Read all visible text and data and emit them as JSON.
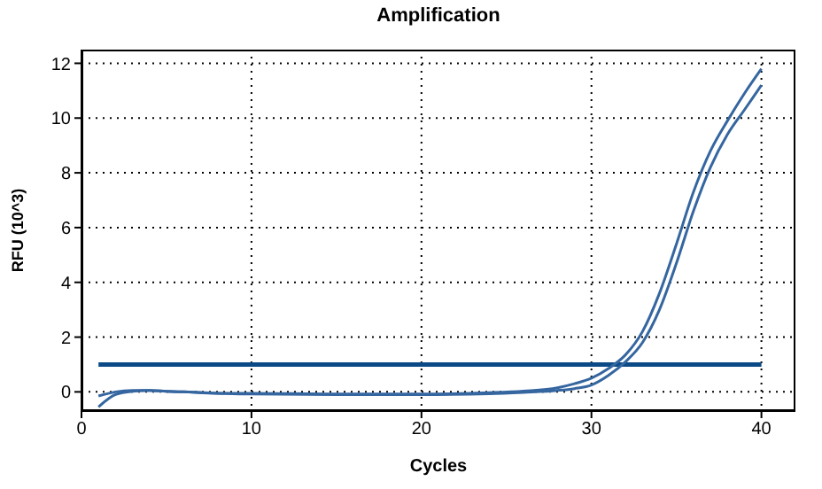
{
  "chart_data": {
    "type": "line",
    "title": "Amplification",
    "xlabel": "Cycles",
    "ylabel": "RFU (10^3)",
    "x": [
      1,
      2,
      3,
      4,
      5,
      6,
      8,
      10,
      15,
      20,
      24,
      26,
      28,
      29,
      30,
      31,
      32,
      33,
      34,
      35,
      36,
      37,
      38,
      39,
      40
    ],
    "series": [
      {
        "color": "#3566a0",
        "values": [
          -0.15,
          0.0,
          0.05,
          0.05,
          0.02,
          0,
          -0.05,
          -0.05,
          -0.08,
          -0.08,
          -0.03,
          0.03,
          0.15,
          0.3,
          0.5,
          0.85,
          1.35,
          2.2,
          3.6,
          5.4,
          7.3,
          8.8,
          9.9,
          10.9,
          11.8
        ]
      },
      {
        "color": "#3566a0",
        "values": [
          -0.55,
          -0.1,
          0.02,
          0.05,
          0.02,
          0,
          -0.05,
          -0.08,
          -0.1,
          -0.1,
          -0.07,
          -0.02,
          0.05,
          0.12,
          0.25,
          0.6,
          1.1,
          1.8,
          3.0,
          4.7,
          6.6,
          8.2,
          9.4,
          10.3,
          11.2
        ]
      }
    ],
    "xlim": [
      0,
      42
    ],
    "xticks": [
      0,
      10,
      20,
      30,
      40
    ],
    "ylim": [
      -0.7,
      12.5
    ],
    "yticks": [
      0,
      2,
      4,
      6,
      8,
      10,
      12
    ],
    "ref_lines": [
      {
        "axis": "y",
        "value": 1,
        "color": "#0b4a86"
      }
    ],
    "grid": true,
    "marker": "none",
    "line_style": "solid"
  }
}
